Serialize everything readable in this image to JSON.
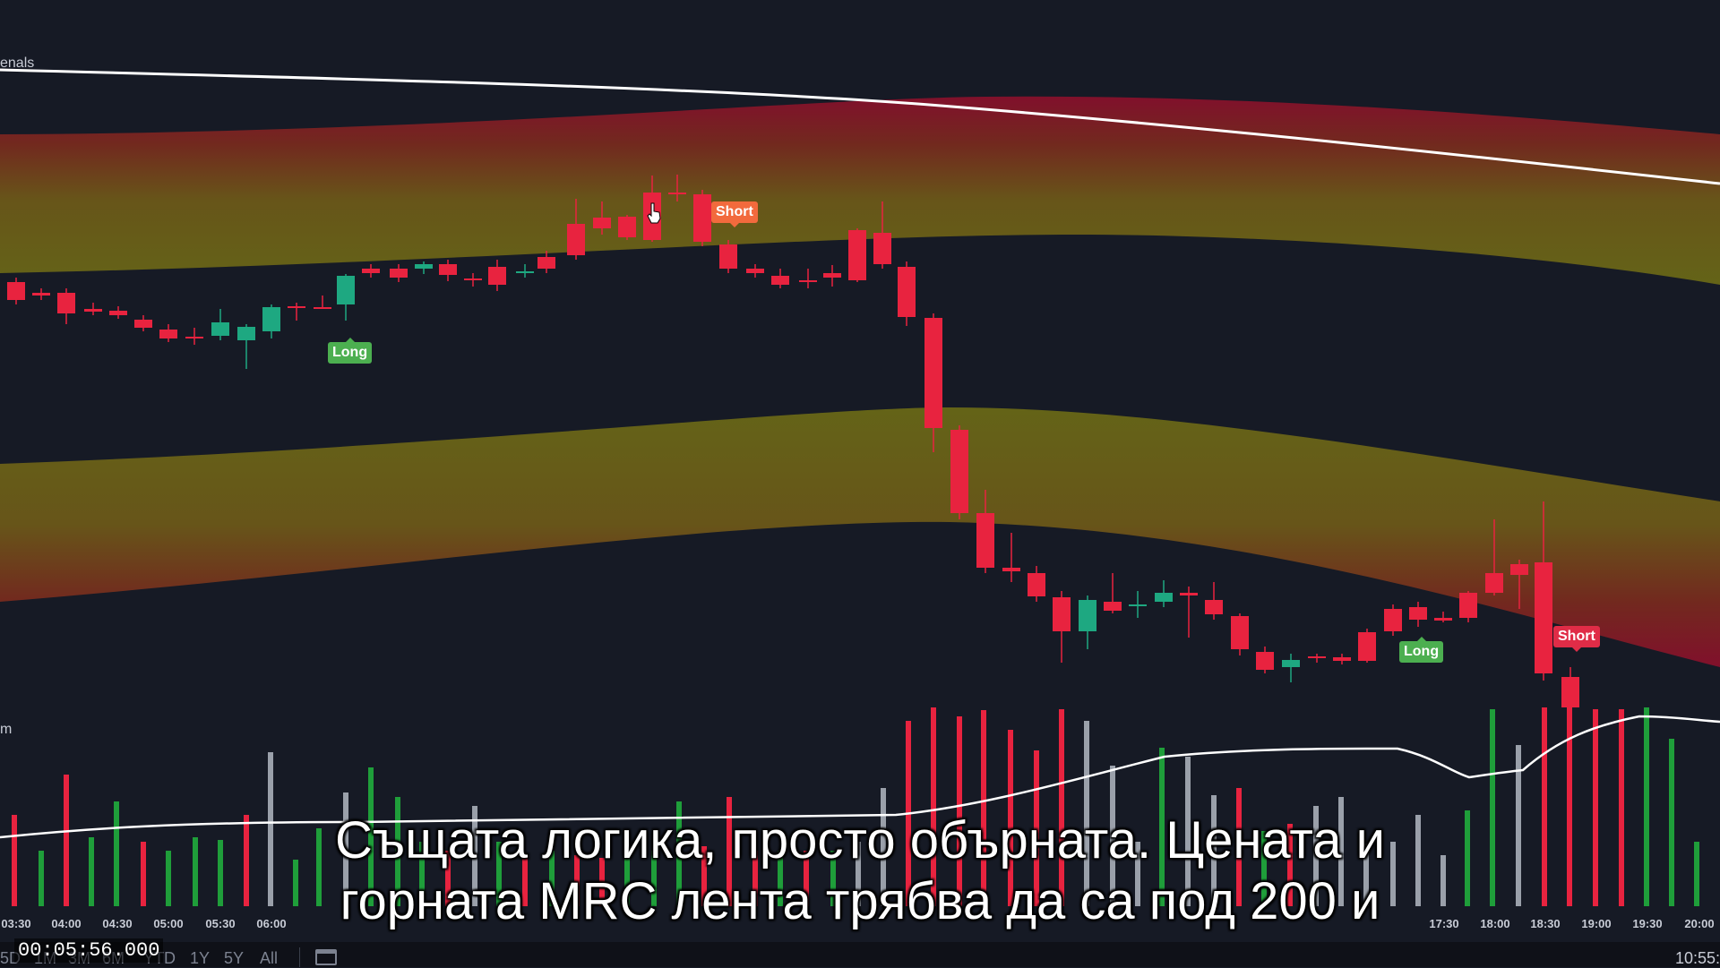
{
  "pane_titles": {
    "main": "enals",
    "volume": "m"
  },
  "signals": [
    {
      "label": "Long",
      "type": "long"
    },
    {
      "label": "Short",
      "type": "short"
    },
    {
      "label": "Short",
      "type": "short"
    },
    {
      "label": "Long",
      "type": "long"
    }
  ],
  "subtitle": {
    "line1": "Същата логика, просто обърната. Цената и",
    "line2": "горната MRC лента трябва да са под 200 и"
  },
  "time_axis": {
    "labels": [
      "03:30",
      "04:00",
      "04:30",
      "05:00",
      "05:30",
      "06:00",
      "17:30",
      "18:00",
      "18:30",
      "19:00",
      "19:30",
      "20:00"
    ]
  },
  "range_buttons": [
    "5D",
    "1M",
    "3M",
    "6M",
    "YTD",
    "1Y",
    "5Y",
    "All"
  ],
  "timecode": "00:05:56.000",
  "clock": "10:55:",
  "colors": {
    "background": "#161a25",
    "bull": "#1ea881",
    "bear": "#e8233f",
    "band_outer": "#7a1027",
    "band_inner": "#8a8a1c",
    "ma_line": "#ffffff"
  }
}
